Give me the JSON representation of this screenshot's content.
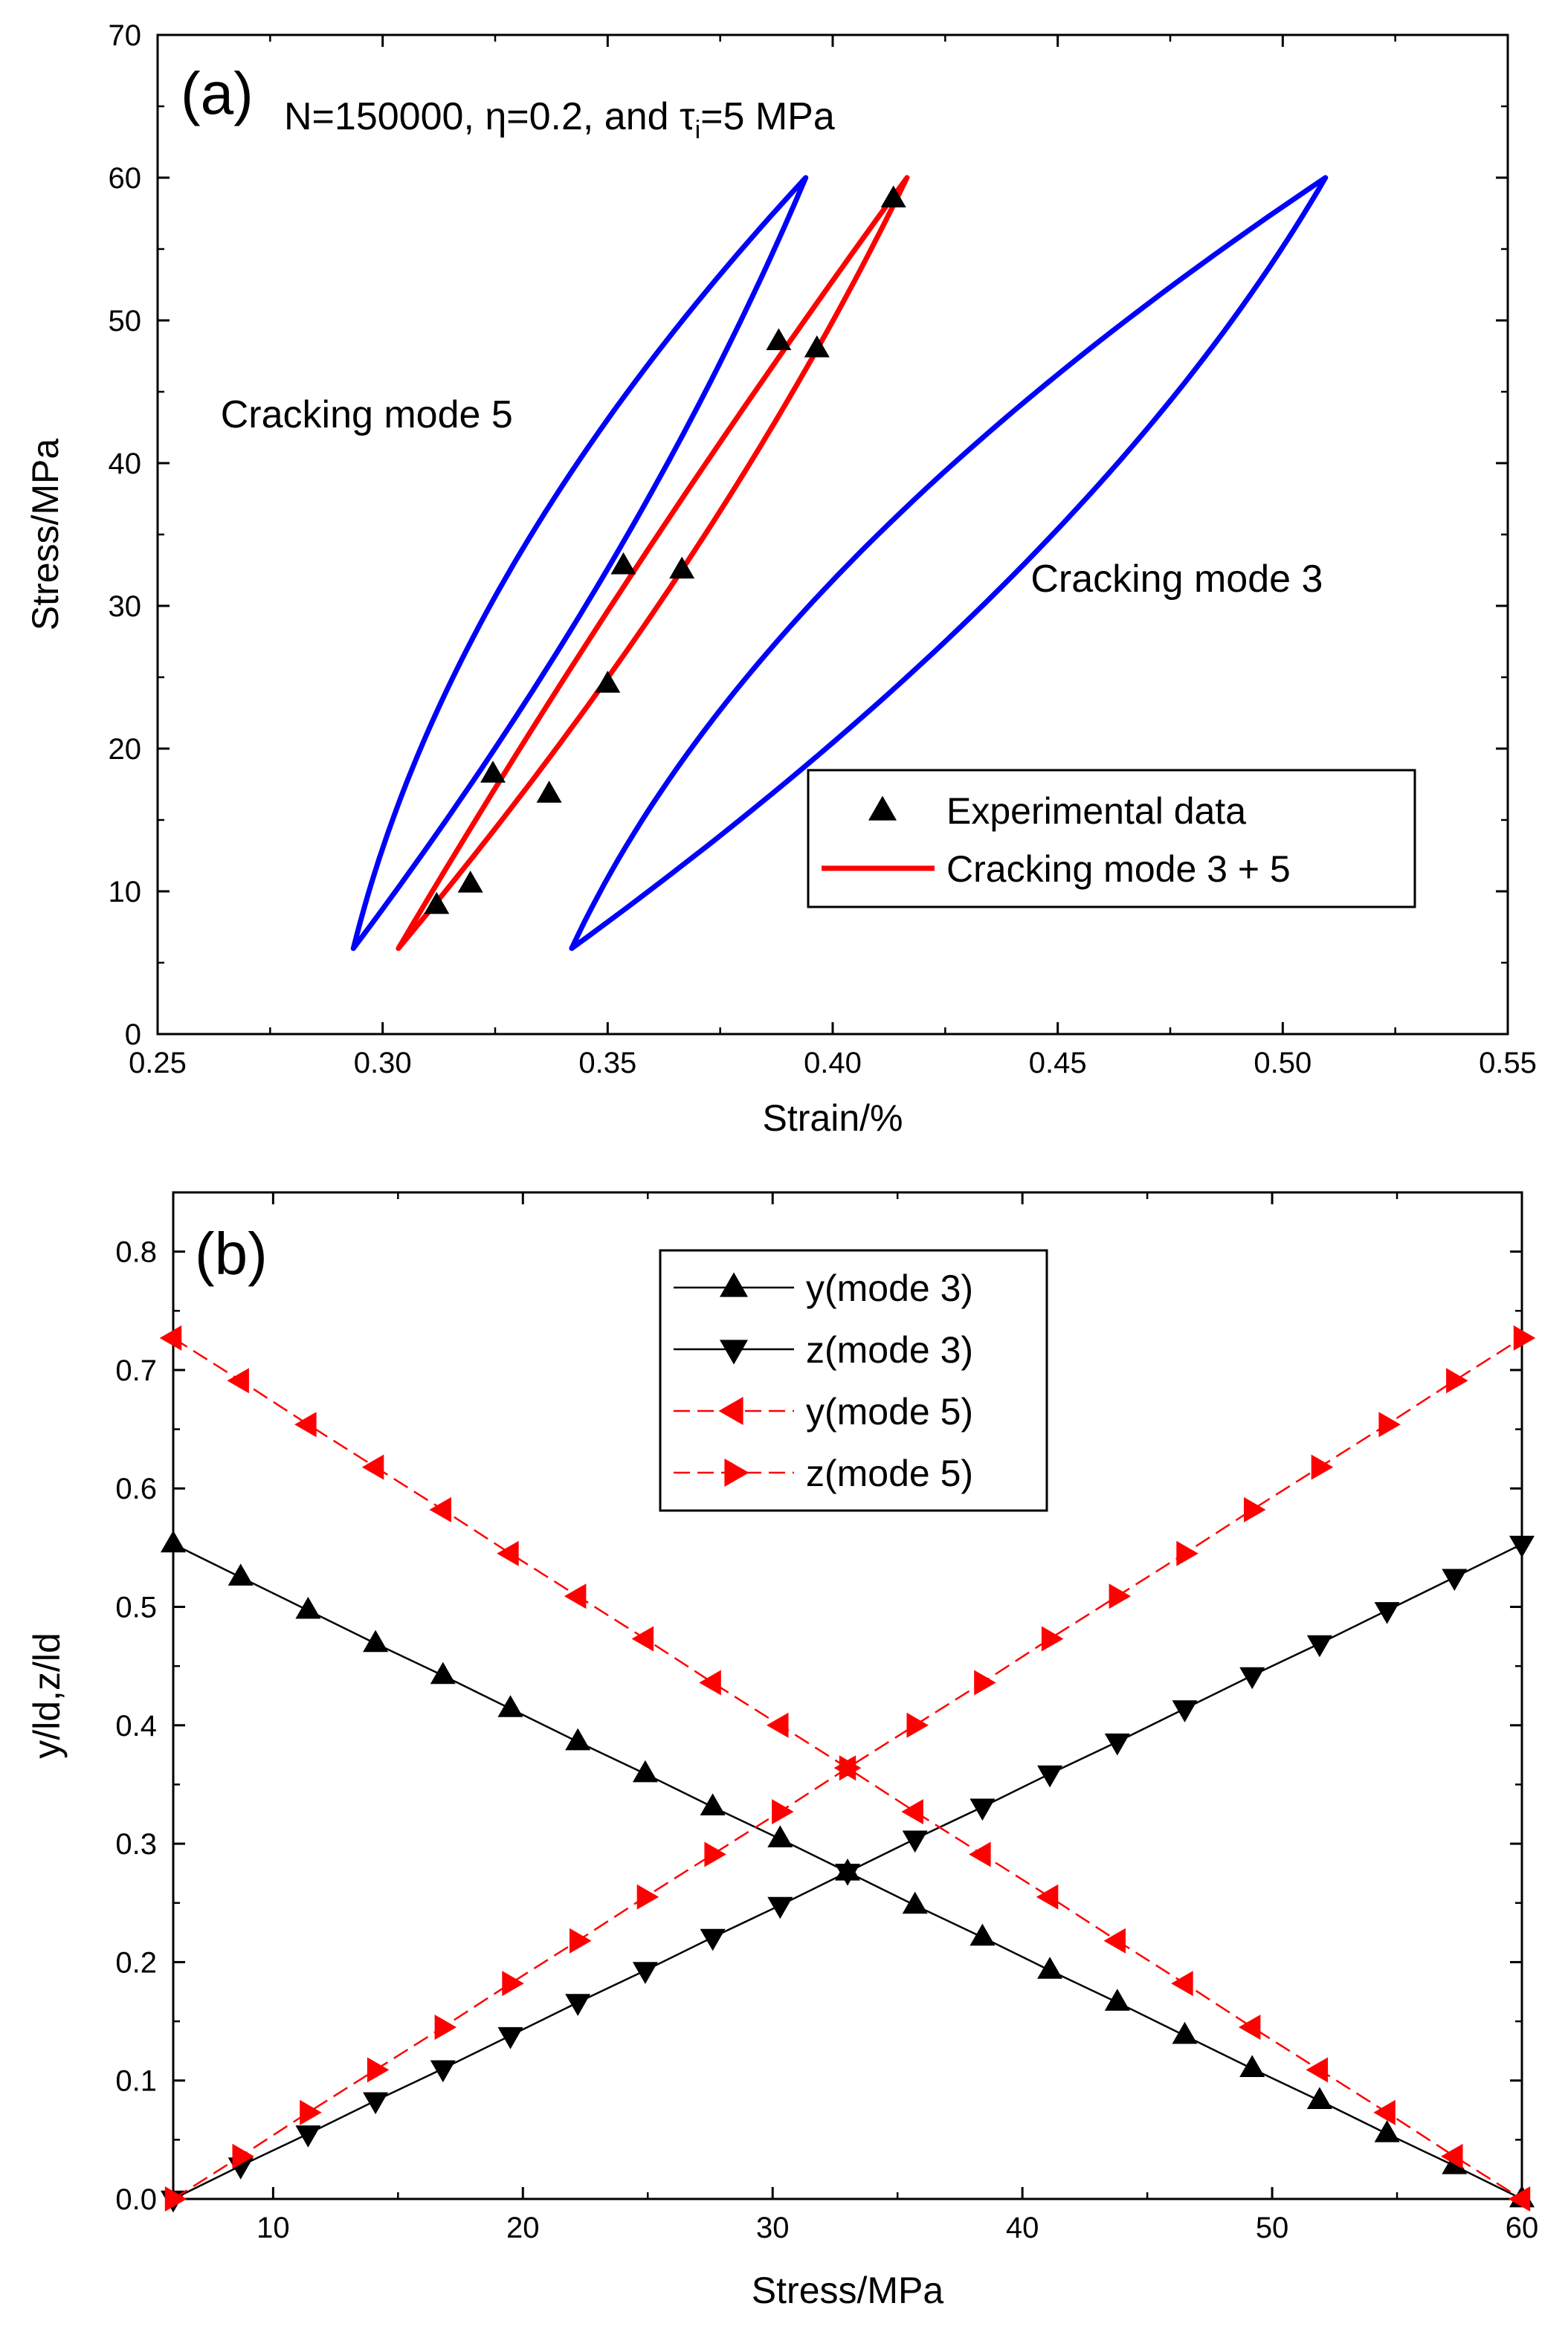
{
  "chart_data": [
    {
      "id": "a",
      "type": "line",
      "panel_label": "(a)",
      "title": "N=150000, η=0.2, and τ",
      "title_subscript": "i",
      "title_suffix": "=5 MPa",
      "xlabel": "Strain/%",
      "ylabel": "Stress/MPa",
      "xlim": [
        0.25,
        0.55
      ],
      "ylim": [
        0,
        70
      ],
      "xticks": [
        "0.25",
        "0.30",
        "0.35",
        "0.40",
        "0.45",
        "0.50",
        "0.55"
      ],
      "yticks": [
        "0",
        "10",
        "20",
        "30",
        "40",
        "50",
        "60",
        "70"
      ],
      "annotations": [
        {
          "text": "Cracking mode 5",
          "x": 0.264,
          "y": 42.5
        },
        {
          "text": "Cracking mode 3",
          "x": 0.444,
          "y": 31.0
        }
      ],
      "legend": {
        "position": "bottom-right",
        "entries": [
          {
            "label": "Experimental data",
            "marker": "triangle-up",
            "color": "#000000"
          },
          {
            "label": "Cracking mode 3 + 5",
            "line": true,
            "color": "#ff0000"
          }
        ]
      },
      "series": [
        {
          "name": "Cracking mode 5",
          "color": "#0000ff",
          "min_point": [
            0.2935,
            6
          ],
          "max_point": [
            0.394,
            60
          ],
          "unload_bulge": 0.007,
          "reload_bulge": -0.0145
        },
        {
          "name": "Cracking mode 3",
          "color": "#0000ff",
          "min_point": [
            0.342,
            6
          ],
          "max_point": [
            0.5095,
            60
          ],
          "unload_bulge": 0.017,
          "reload_bulge": -0.022
        },
        {
          "name": "Cracking mode 3 + 5",
          "color": "#ff0000",
          "min_point": [
            0.3035,
            6
          ],
          "max_point": [
            0.4165,
            60
          ],
          "unload_bulge": 0.0075,
          "reload_bulge": -0.003
        }
      ],
      "experimental_data": {
        "name": "Experimental data",
        "x": [
          0.312,
          0.3195,
          0.3245,
          0.337,
          0.35,
          0.3535,
          0.3665,
          0.388,
          0.3965,
          0.4135
        ],
        "y": [
          9.0,
          10.5,
          18.2,
          16.8,
          24.5,
          32.8,
          32.5,
          48.5,
          48.0,
          58.5
        ]
      }
    },
    {
      "id": "b",
      "type": "line",
      "panel_label": "(b)",
      "xlabel": "Stress/MPa",
      "ylabel": "y/ld,z/ld",
      "xlim": [
        6,
        60
      ],
      "ylim": [
        0,
        0.85
      ],
      "xticks": [
        "10",
        "20",
        "30",
        "40",
        "50",
        "60"
      ],
      "yticks": [
        "0.0",
        "0.1",
        "0.2",
        "0.3",
        "0.4",
        "0.5",
        "0.6",
        "0.7",
        "0.8"
      ],
      "x": [
        6.0,
        8.7,
        11.4,
        14.1,
        16.8,
        19.5,
        22.2,
        24.9,
        27.6,
        30.3,
        33.0,
        35.7,
        38.4,
        41.1,
        43.8,
        46.5,
        49.2,
        51.9,
        54.6,
        57.3,
        60.0
      ],
      "series": [
        {
          "name": "y(mode 3)",
          "color": "#000000",
          "marker": "triangle-up",
          "values": [
            0.553,
            0.525,
            0.497,
            0.469,
            0.442,
            0.414,
            0.386,
            0.359,
            0.331,
            0.304,
            0.276,
            0.248,
            0.221,
            0.193,
            0.166,
            0.138,
            0.11,
            0.083,
            0.055,
            0.028,
            0.0
          ]
        },
        {
          "name": "z(mode 3)",
          "color": "#000000",
          "marker": "triangle-down",
          "values": [
            0.0,
            0.028,
            0.055,
            0.083,
            0.11,
            0.138,
            0.166,
            0.193,
            0.221,
            0.248,
            0.276,
            0.304,
            0.331,
            0.359,
            0.386,
            0.414,
            0.442,
            0.469,
            0.497,
            0.525,
            0.553
          ]
        },
        {
          "name": "y(mode 5)",
          "color": "#ff0000",
          "marker": "triangle-left",
          "values": [
            0.727,
            0.691,
            0.654,
            0.618,
            0.582,
            0.545,
            0.509,
            0.473,
            0.436,
            0.4,
            0.364,
            0.327,
            0.291,
            0.255,
            0.218,
            0.182,
            0.145,
            0.109,
            0.073,
            0.036,
            0.0
          ]
        },
        {
          "name": "z(mode 5)",
          "color": "#ff0000",
          "marker": "triangle-right",
          "values": [
            0.0,
            0.036,
            0.073,
            0.109,
            0.145,
            0.182,
            0.218,
            0.255,
            0.291,
            0.327,
            0.364,
            0.4,
            0.436,
            0.473,
            0.509,
            0.545,
            0.582,
            0.618,
            0.654,
            0.691,
            0.727
          ]
        }
      ],
      "legend": {
        "position": "top-center",
        "entries": [
          "y(mode 3)",
          "z(mode 3)",
          "y(mode 5)",
          "z(mode 5)"
        ]
      }
    }
  ]
}
